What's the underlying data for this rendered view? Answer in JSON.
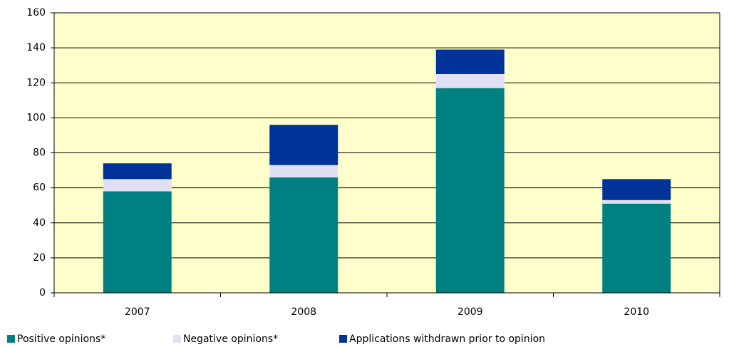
{
  "chart_data": {
    "type": "stacked_bar",
    "categories": [
      "2007",
      "2008",
      "2009",
      "2010"
    ],
    "series": [
      {
        "name": "Positive opinions*",
        "color": "#008080",
        "values": [
          58,
          66,
          117,
          51
        ]
      },
      {
        "name": "Negative opinions*",
        "color": "#e0e0f2",
        "values": [
          7,
          7,
          8,
          2
        ]
      },
      {
        "name": "Applications withdrawn prior to opinion",
        "color": "#003399",
        "values": [
          9,
          23,
          14,
          12
        ]
      }
    ],
    "ylim": [
      0,
      160
    ],
    "yticks": [
      0,
      20,
      40,
      60,
      80,
      100,
      120,
      140,
      160
    ],
    "grid": true,
    "background": "#ffffcc",
    "legend": "bottom"
  }
}
